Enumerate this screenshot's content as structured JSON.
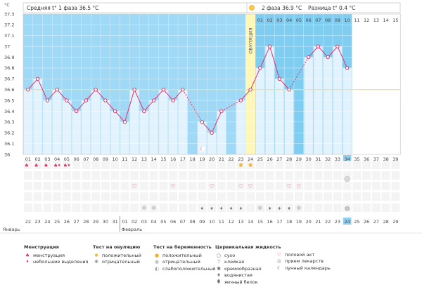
{
  "chart_data": {
    "type": "line",
    "title": "",
    "unit_label": "°C",
    "phase1_label": "Средняя t° 1 фаза 36.5 °C",
    "phase2_label": "2 фаза 36.9 °C",
    "diff_label": "Разница t° 0.4 °C",
    "ovulation_label": "ОВУЛЯЦИЯ",
    "ylim": [
      36.0,
      37.3
    ],
    "yticks": [
      "36",
      "36.1",
      "36.2",
      "36.3",
      "36.4",
      "36.5",
      "36.6",
      "36.7",
      "36.8",
      "36.9",
      "37",
      "37.1",
      "37.2",
      "37.3"
    ],
    "coverline": 36.6,
    "cycle_days": [
      "01",
      "02",
      "03",
      "04",
      "05",
      "06",
      "07",
      "08",
      "09",
      "10",
      "11",
      "12",
      "13",
      "14",
      "15",
      "16",
      "17",
      "18",
      "19",
      "20",
      "21",
      "22",
      "23",
      "24",
      "25",
      "26",
      "27",
      "28",
      "29",
      "30",
      "31",
      "32",
      "33",
      "34",
      "35",
      "36",
      "37",
      "38",
      "39"
    ],
    "post_ovulation_days": [
      "01",
      "02",
      "03",
      "04",
      "05",
      "06",
      "07",
      "08",
      "09",
      "10",
      "11",
      "12",
      "13",
      "14",
      "15"
    ],
    "temperatures": [
      36.6,
      36.7,
      36.5,
      36.6,
      36.5,
      36.4,
      36.5,
      36.6,
      36.5,
      36.4,
      36.3,
      36.6,
      36.4,
      36.5,
      36.6,
      36.5,
      36.6,
      null,
      36.3,
      36.2,
      36.4,
      null,
      36.5,
      36.6,
      36.8,
      37.0,
      36.7,
      36.6,
      null,
      36.9,
      37.0,
      36.9,
      37.0,
      36.8,
      null,
      null,
      null,
      null,
      null
    ],
    "ovulation_day": 24,
    "current_day": 34,
    "lunar_day": 19,
    "calendar_dates": [
      "22",
      "23",
      "24",
      "25",
      "26",
      "27",
      "28",
      "29",
      "30",
      "31",
      "01",
      "02",
      "03",
      "04",
      "05",
      "06",
      "07",
      "08",
      "09",
      "10",
      "11",
      "12",
      "13",
      "14",
      "15",
      "16",
      "17",
      "18",
      "19",
      "20",
      "21",
      "22",
      "23",
      "24",
      "25",
      "26",
      "27",
      "28",
      "29"
    ],
    "weekend_indices": [
      0,
      6,
      7,
      13,
      14,
      20,
      21,
      27,
      28,
      34,
      35
    ],
    "month_labels": [
      "Январь",
      "Февраль"
    ],
    "menstruation_days": [
      1,
      2,
      3,
      4,
      5
    ],
    "light_bleeding_days": [
      4,
      5
    ],
    "ovulation_test_days": [
      23,
      24
    ],
    "intercourse_days": [
      12,
      16,
      20,
      23,
      24,
      28,
      29
    ],
    "mucus_days": [
      19,
      20,
      21,
      22,
      23,
      26,
      27,
      28
    ],
    "mucus_egg_white_days": [
      13,
      14,
      25,
      29
    ],
    "pregnancy_test_days": [
      34
    ],
    "medication_days": [
      34
    ]
  },
  "legend": {
    "menstruation": {
      "title": "Менструация",
      "items": [
        "менструация",
        "небольшие выделения"
      ]
    },
    "ovulation_test": {
      "title": "Тест на овуляцию",
      "items": [
        "положительный",
        "отрицательный"
      ]
    },
    "pregnancy_test": {
      "title": "Тест на беременность",
      "items": [
        "положительный",
        "отрицательный",
        "слабоположительный"
      ]
    },
    "cervical_fluid": {
      "title": "Цервикальная жидкость",
      "items": [
        "сухо",
        "клейкая",
        "кремообразная",
        "водянистая",
        "яичный белок"
      ]
    },
    "other": {
      "items": [
        "половой акт",
        "прием лекарств",
        "лунный календарь"
      ]
    }
  },
  "colors": {
    "phase1_bg": "#9fd9f6",
    "phase2_bg": "#80cdf2",
    "bar_fill": "#e3f3fd",
    "ovulation_band": "#fff7b8",
    "line": "#e0306a",
    "coverline": "#f5e27a",
    "weekend": "#d7263d",
    "current_day": "#8fd0f0"
  }
}
